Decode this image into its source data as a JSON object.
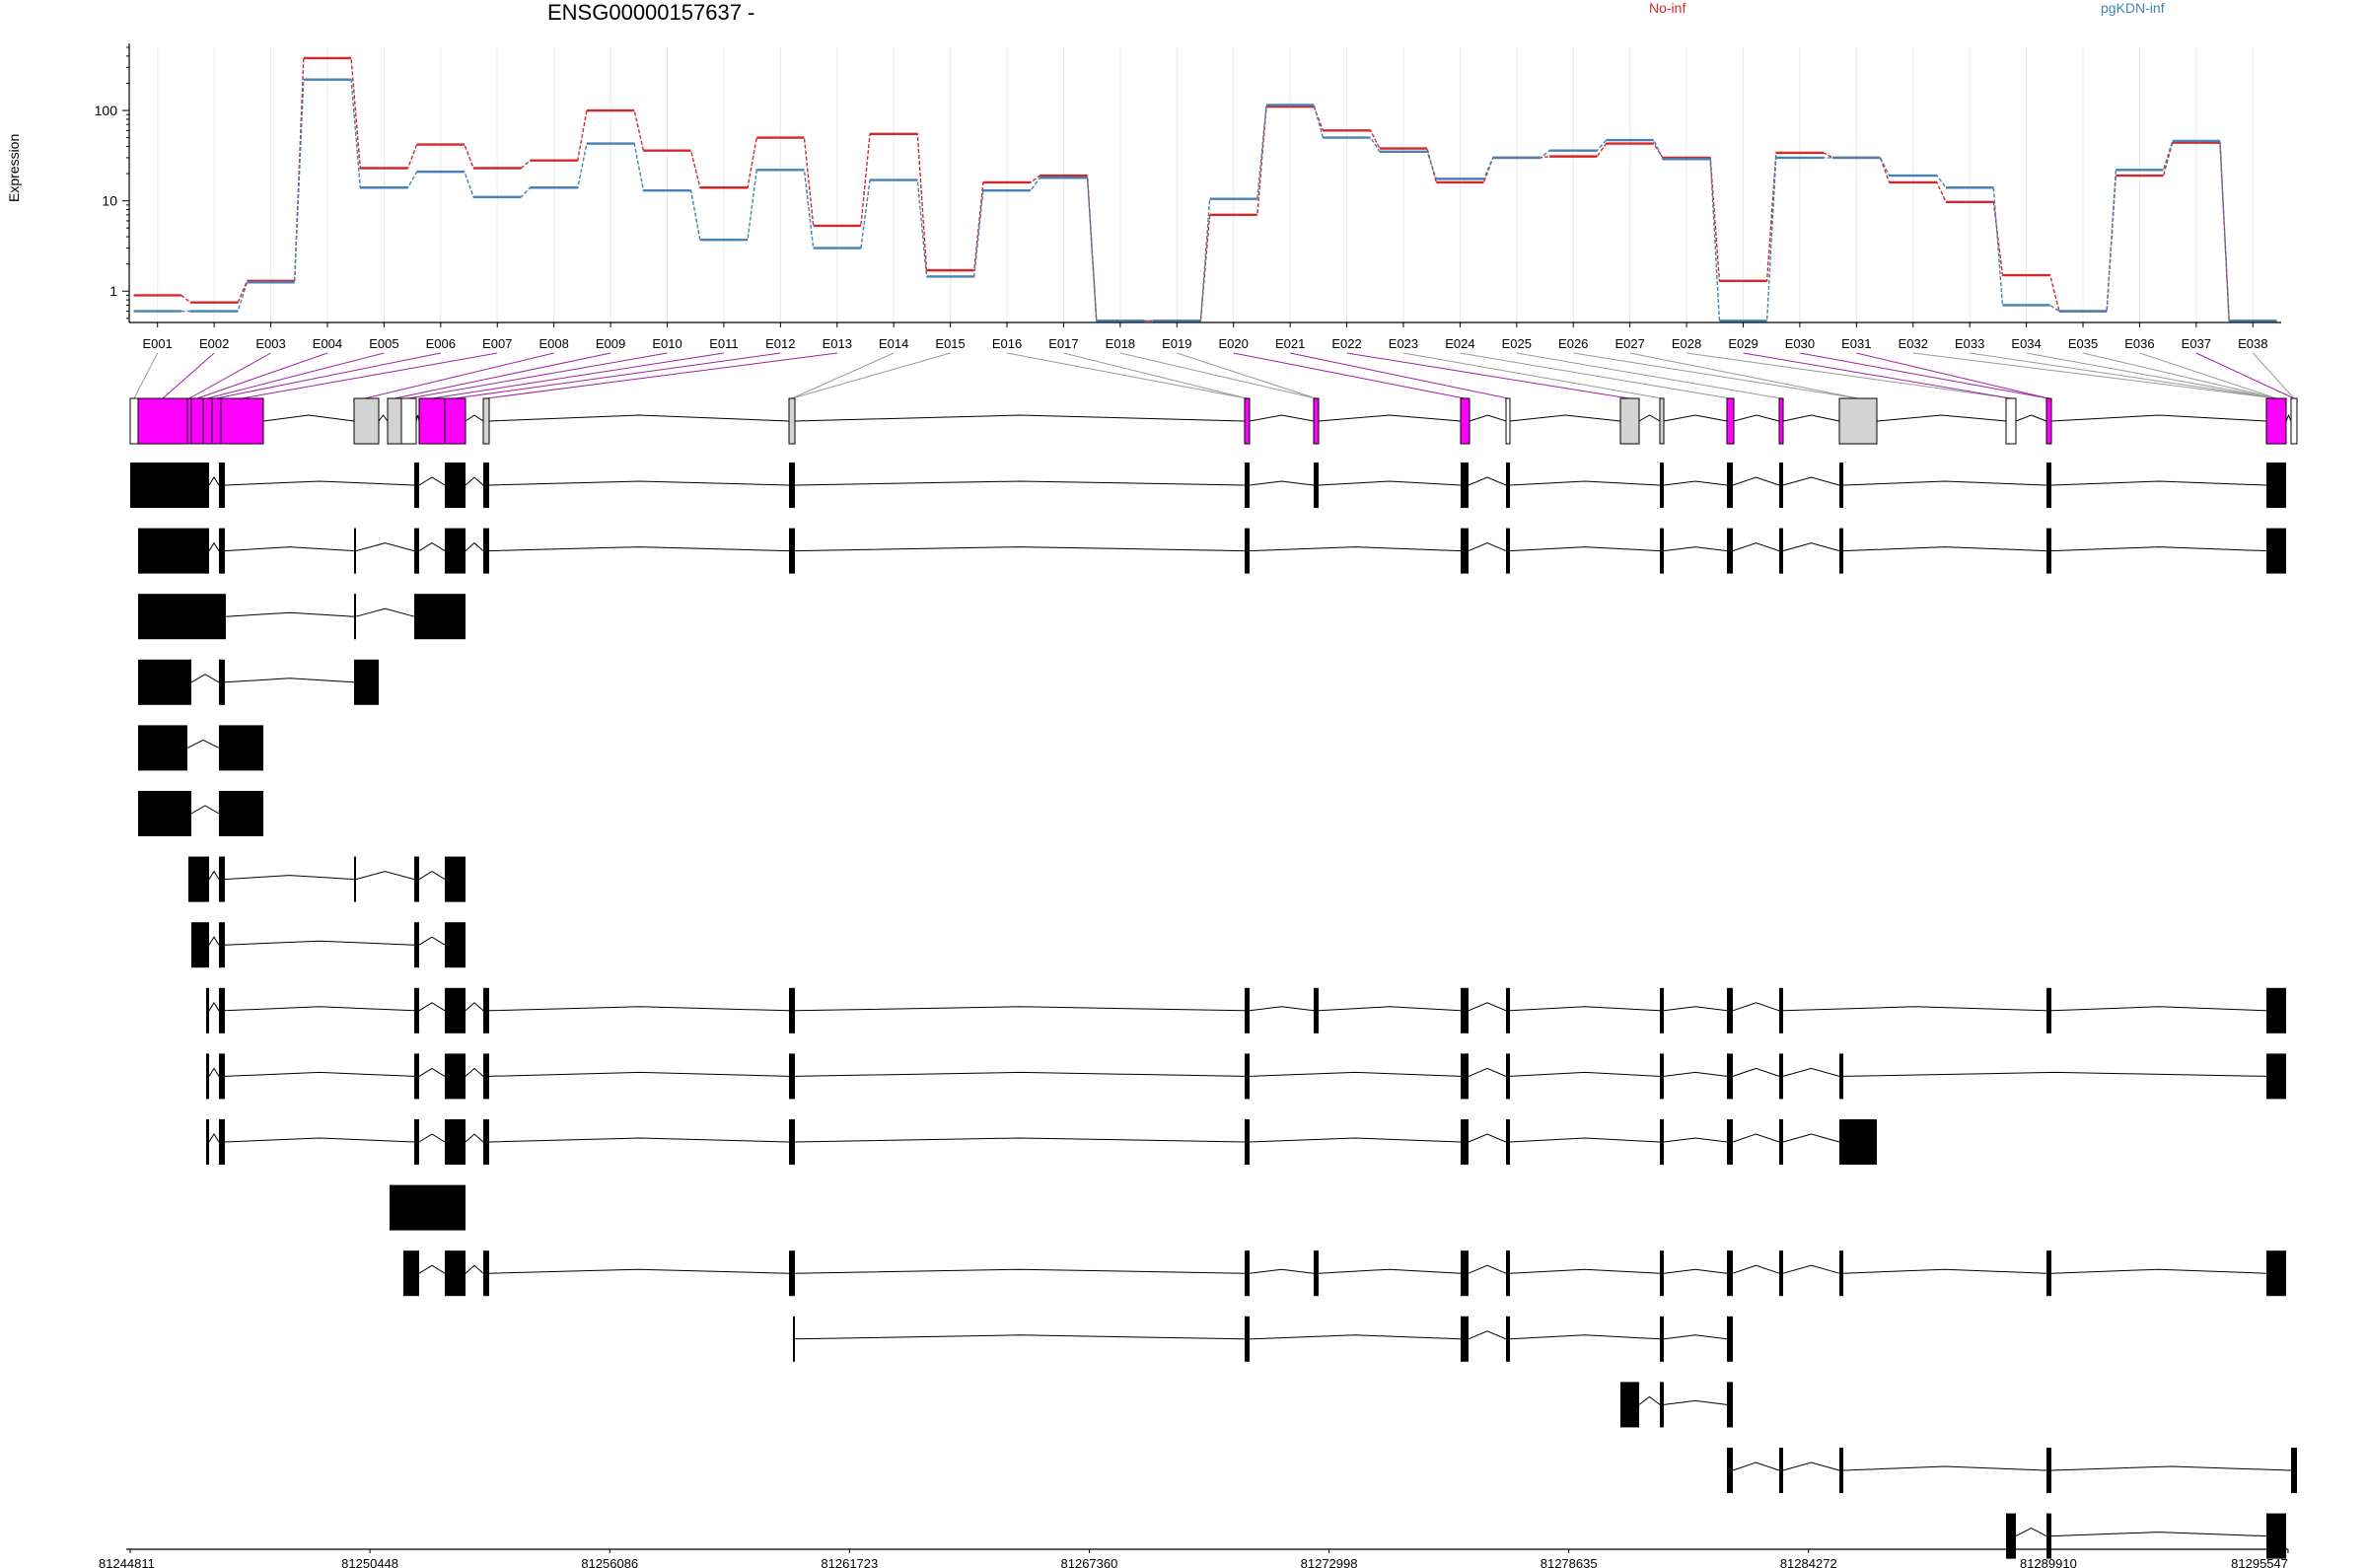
{
  "title": "ENSG00000157637 -",
  "legend": [
    {
      "label": "No-inf",
      "color": "#d62728"
    },
    {
      "label": "pgKDN-inf",
      "color": "#4682b4"
    }
  ],
  "chart_data": {
    "type": "line",
    "ylabel": "Expression",
    "yscale": "log",
    "yticks": [
      "1",
      "10",
      "100"
    ],
    "categories": [
      "E001",
      "E002",
      "E003",
      "E004",
      "E005",
      "E006",
      "E007",
      "E008",
      "E009",
      "E010",
      "E011",
      "E012",
      "E013",
      "E014",
      "E015",
      "E016",
      "E017",
      "E018",
      "E019",
      "E020",
      "E021",
      "E022",
      "E023",
      "E024",
      "E025",
      "E026",
      "E027",
      "E028",
      "E029",
      "E030",
      "E031",
      "E032",
      "E033",
      "E034",
      "E035",
      "E036",
      "E037",
      "E038"
    ],
    "series": [
      {
        "name": "No-inf",
        "color": "#d62728",
        "values": [
          0.9,
          0.75,
          1.3,
          380,
          23,
          42,
          23,
          28,
          100,
          36,
          14,
          50,
          5.3,
          55,
          1.7,
          16,
          19,
          0.47,
          0.47,
          7,
          110,
          60,
          38,
          16,
          30,
          31,
          43,
          30,
          1.3,
          34,
          30,
          16,
          9.7,
          1.5,
          0.6,
          19,
          44,
          0.47
        ]
      },
      {
        "name": "pgKDN-inf",
        "color": "#4682b4",
        "values": [
          0.6,
          0.6,
          1.25,
          220,
          14,
          21,
          11,
          14,
          43,
          13,
          3.7,
          22,
          3.0,
          17,
          1.45,
          13,
          18,
          0.47,
          0.47,
          10.5,
          115,
          50,
          35,
          17.5,
          30,
          36,
          47,
          29,
          0.47,
          30,
          30,
          19,
          14,
          0.7,
          0.6,
          22,
          46,
          0.47
        ]
      }
    ],
    "genomic_axis": {
      "tick_labels": [
        "81244811",
        "81250448",
        "81256086",
        "81261723",
        "81267360",
        "81272998",
        "81278635",
        "81284272",
        "81289910",
        "81295547"
      ]
    }
  },
  "gene_model": {
    "exon_colors": {
      "significant": "#ff00ff",
      "other": "#d3d3d3",
      "empty": "#ffffff",
      "transcript": "#000000"
    },
    "transcript_count": 17
  }
}
